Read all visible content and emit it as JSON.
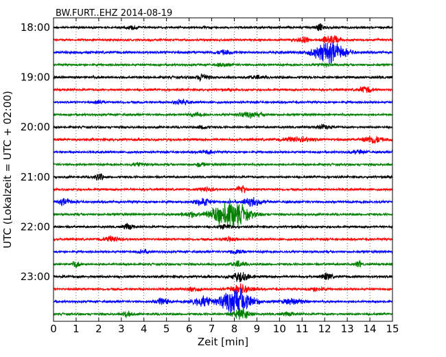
{
  "chart_data": {
    "type": "line",
    "title": "BW.FURT..EHZ 2014-08-19",
    "xlabel": "Zeit  [min]",
    "ylabel": "UTC (Lokalzeit = UTC + 02:00)",
    "xlim": [
      0,
      15
    ],
    "x_ticks": [
      "0",
      "1",
      "2",
      "3",
      "4",
      "5",
      "6",
      "7",
      "8",
      "9",
      "10",
      "11",
      "12",
      "13",
      "14",
      "15"
    ],
    "y_ticks": [
      "18:00",
      "19:00",
      "20:00",
      "21:00",
      "22:00",
      "23:00"
    ],
    "row_interval_min": 15,
    "rows_per_tick": 4,
    "trace_colors": [
      "#000000",
      "#ff0000",
      "#0000ff",
      "#008000"
    ],
    "grid": true,
    "traces": [
      {
        "noise": 0.3,
        "events": [
          {
            "t": 3.5,
            "amp": 0.6,
            "w": 0.2
          },
          {
            "t": 11.8,
            "amp": 0.9,
            "w": 0.2
          }
        ]
      },
      {
        "noise": 0.3,
        "events": [
          {
            "t": 11.0,
            "amp": 0.8,
            "w": 0.3
          },
          {
            "t": 12.3,
            "amp": 1.2,
            "w": 0.4
          }
        ]
      },
      {
        "noise": 0.35,
        "events": [
          {
            "t": 7.5,
            "amp": 0.5,
            "w": 0.3
          },
          {
            "t": 12.2,
            "amp": 2.8,
            "w": 0.7
          }
        ]
      },
      {
        "noise": 0.3,
        "events": [
          {
            "t": 7.5,
            "amp": 0.4,
            "w": 0.4
          },
          {
            "t": 12.0,
            "amp": 0.5,
            "w": 0.3
          }
        ]
      },
      {
        "noise": 0.35,
        "events": [
          {
            "t": 6.6,
            "amp": 1.0,
            "w": 0.25
          },
          {
            "t": 9.0,
            "amp": 0.4,
            "w": 0.3
          }
        ]
      },
      {
        "noise": 0.3,
        "events": [
          {
            "t": 13.8,
            "amp": 0.9,
            "w": 0.3
          }
        ]
      },
      {
        "noise": 0.3,
        "events": [
          {
            "t": 5.6,
            "amp": 0.8,
            "w": 0.3
          },
          {
            "t": 2.0,
            "amp": 0.4,
            "w": 0.2
          }
        ]
      },
      {
        "noise": 0.3,
        "events": [
          {
            "t": 8.7,
            "amp": 0.7,
            "w": 0.6
          },
          {
            "t": 6.3,
            "amp": 0.5,
            "w": 0.3
          }
        ]
      },
      {
        "noise": 0.3,
        "events": [
          {
            "t": 6.6,
            "amp": 0.5,
            "w": 0.2
          },
          {
            "t": 12.0,
            "amp": 0.6,
            "w": 0.3
          }
        ]
      },
      {
        "noise": 0.35,
        "events": [
          {
            "t": 10.8,
            "amp": 0.7,
            "w": 0.6
          },
          {
            "t": 14.1,
            "amp": 1.1,
            "w": 0.4
          }
        ]
      },
      {
        "noise": 0.3,
        "events": [
          {
            "t": 6.8,
            "amp": 0.5,
            "w": 0.3
          },
          {
            "t": 13.5,
            "amp": 0.4,
            "w": 0.4
          }
        ]
      },
      {
        "noise": 0.3,
        "events": [
          {
            "t": 3.8,
            "amp": 0.5,
            "w": 0.3
          },
          {
            "t": 6.5,
            "amp": 0.6,
            "w": 0.2
          }
        ]
      },
      {
        "noise": 0.3,
        "events": [
          {
            "t": 2.0,
            "amp": 1.0,
            "w": 0.2
          }
        ]
      },
      {
        "noise": 0.3,
        "events": [
          {
            "t": 6.8,
            "amp": 0.7,
            "w": 0.3
          },
          {
            "t": 8.3,
            "amp": 1.4,
            "w": 0.2
          }
        ]
      },
      {
        "noise": 0.35,
        "events": [
          {
            "t": 0.5,
            "amp": 0.8,
            "w": 0.3
          },
          {
            "t": 6.6,
            "amp": 1.2,
            "w": 0.3
          },
          {
            "t": 8.8,
            "amp": 1.0,
            "w": 0.4
          }
        ]
      },
      {
        "noise": 0.3,
        "events": [
          {
            "t": 7.8,
            "amp": 3.8,
            "w": 0.8
          },
          {
            "t": 6.0,
            "amp": 0.7,
            "w": 0.4
          }
        ]
      },
      {
        "noise": 0.3,
        "events": [
          {
            "t": 3.3,
            "amp": 0.9,
            "w": 0.2
          },
          {
            "t": 7.6,
            "amp": 0.6,
            "w": 0.3
          }
        ]
      },
      {
        "noise": 0.3,
        "events": [
          {
            "t": 2.6,
            "amp": 0.8,
            "w": 0.4
          },
          {
            "t": 7.8,
            "amp": 0.6,
            "w": 0.3
          }
        ]
      },
      {
        "noise": 0.3,
        "events": [
          {
            "t": 8.1,
            "amp": 0.8,
            "w": 0.3
          },
          {
            "t": 4.0,
            "amp": 0.5,
            "w": 0.3
          }
        ]
      },
      {
        "noise": 0.3,
        "events": [
          {
            "t": 1.0,
            "amp": 1.0,
            "w": 0.15
          },
          {
            "t": 8.2,
            "amp": 0.8,
            "w": 0.3
          },
          {
            "t": 13.5,
            "amp": 0.8,
            "w": 0.15
          }
        ]
      },
      {
        "noise": 0.35,
        "events": [
          {
            "t": 8.3,
            "amp": 1.4,
            "w": 0.4
          },
          {
            "t": 12.1,
            "amp": 1.0,
            "w": 0.2
          }
        ]
      },
      {
        "noise": 0.3,
        "events": [
          {
            "t": 6.2,
            "amp": 0.6,
            "w": 0.3
          },
          {
            "t": 8.3,
            "amp": 1.2,
            "w": 0.5
          },
          {
            "t": 11.6,
            "amp": 0.6,
            "w": 0.3
          }
        ]
      },
      {
        "noise": 0.3,
        "events": [
          {
            "t": 4.8,
            "amp": 1.0,
            "w": 0.3
          },
          {
            "t": 6.6,
            "amp": 1.3,
            "w": 0.5
          },
          {
            "t": 8.1,
            "amp": 3.8,
            "w": 0.7
          },
          {
            "t": 10.6,
            "amp": 0.8,
            "w": 0.5
          }
        ]
      },
      {
        "noise": 0.3,
        "events": [
          {
            "t": 3.3,
            "amp": 1.0,
            "w": 0.2
          },
          {
            "t": 8.3,
            "amp": 1.3,
            "w": 0.4
          },
          {
            "t": 10.4,
            "amp": 0.5,
            "w": 0.3
          }
        ]
      }
    ]
  }
}
